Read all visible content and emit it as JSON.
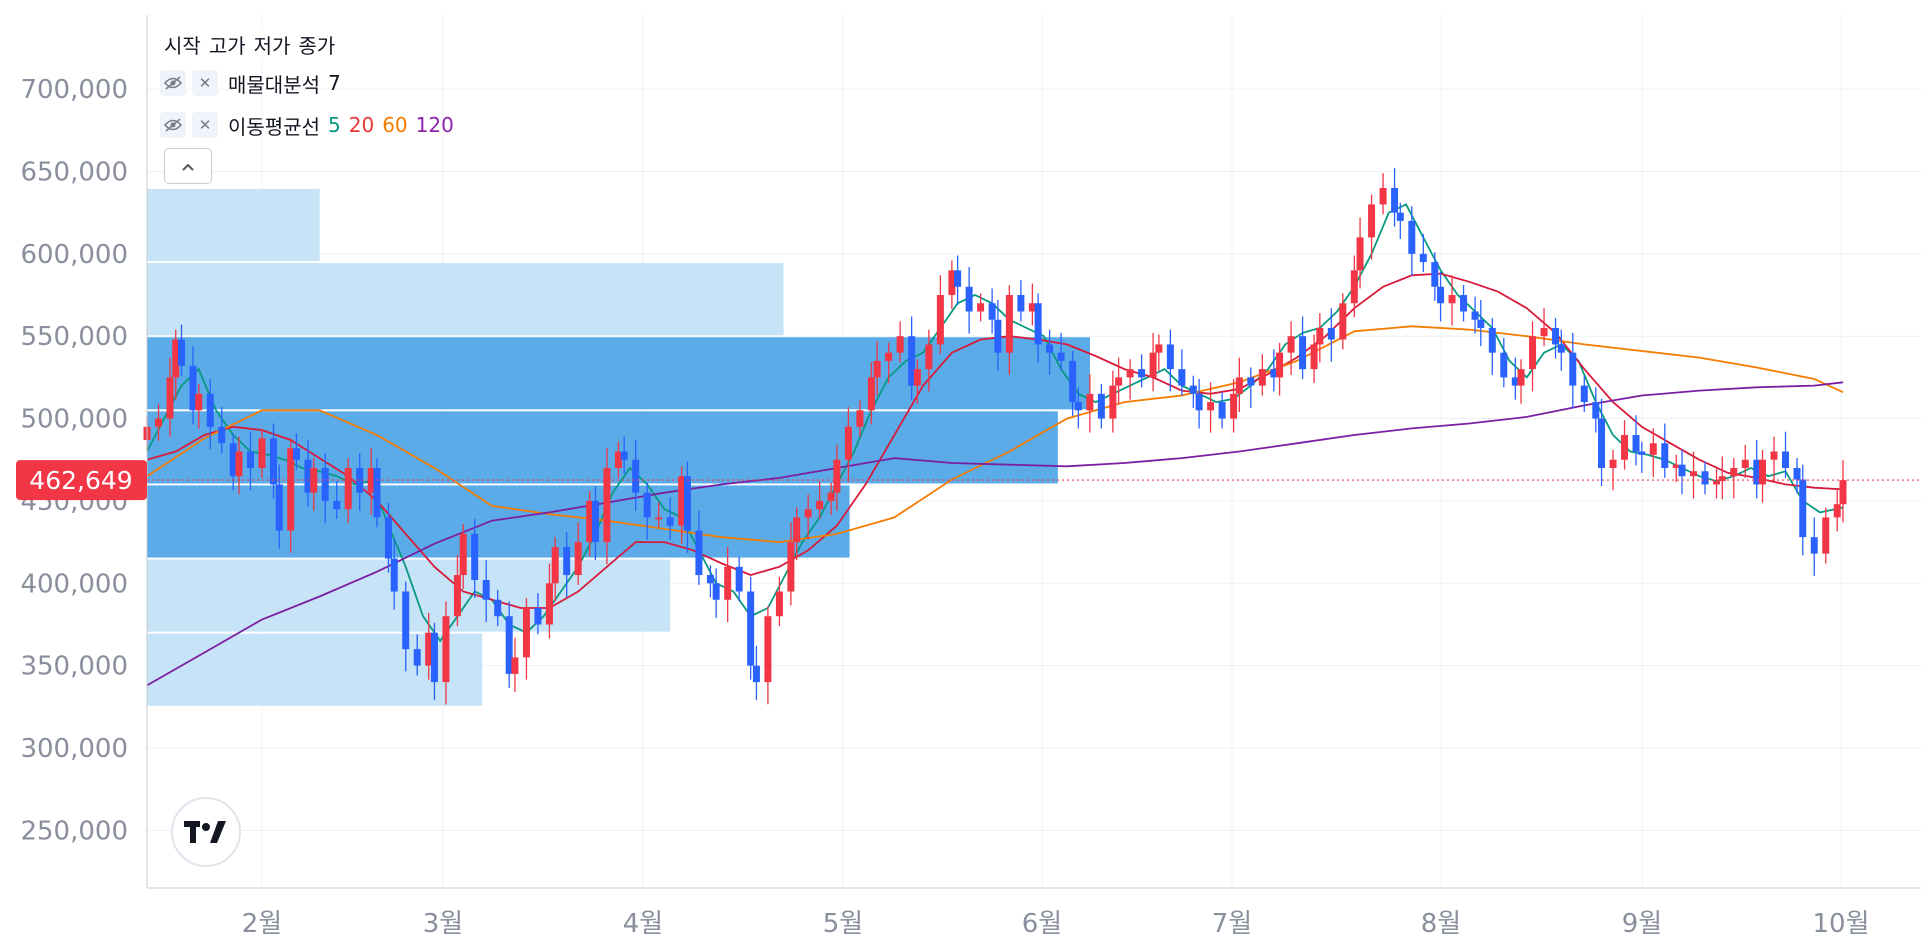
{
  "legend": {
    "ohlc_labels": [
      "시작",
      "고가",
      "저가",
      "종가"
    ],
    "indicators": [
      {
        "name": "매물대분석",
        "params": [
          {
            "text": "7",
            "color": "#131722"
          }
        ]
      },
      {
        "name": "이동평균선",
        "params": [
          {
            "text": "5",
            "color": "#089981"
          },
          {
            "text": "20",
            "color": "#e53935"
          },
          {
            "text": "60",
            "color": "#f57c00"
          },
          {
            "text": "120",
            "color": "#8e24aa"
          }
        ]
      }
    ]
  },
  "current_price_label": "462,649",
  "colors": {
    "up": "#f23645",
    "down": "#2962ff",
    "ma5": "#089981",
    "ma20": "#d81b3a",
    "ma60": "#f57c00",
    "ma120": "#7b1fa2",
    "vp_dark": "#5aabe8",
    "vp_light": "#c6e3f7",
    "grid": "#eef0f4",
    "axis_text": "#8a8f9e",
    "price_label_bg": "#f23645"
  },
  "chart_data": {
    "type": "candlestick",
    "title": "",
    "y_axis": {
      "ylim": [
        215000,
        745000
      ],
      "tick_labels": [
        "250,000",
        "300,000",
        "350,000",
        "400,000",
        "450,000",
        "500,000",
        "550,000",
        "600,000",
        "650,000",
        "700,000"
      ],
      "ticks": [
        250000,
        300000,
        350000,
        400000,
        450000,
        500000,
        550000,
        600000,
        650000,
        700000
      ]
    },
    "x_axis": {
      "range": [
        "01-15",
        "10-11"
      ],
      "tick_labels": [
        "2월",
        "3월",
        "4월",
        "5월",
        "6월",
        "7월",
        "8월",
        "9월",
        "10월"
      ],
      "tick_dates": [
        "02-01",
        "03-01",
        "04-01",
        "05-01",
        "06-01",
        "07-01",
        "08-01",
        "09-01",
        "10-01"
      ]
    },
    "current_price": 462649,
    "candles_close": [
      [
        0,
        495000
      ],
      [
        2,
        500000
      ],
      [
        4,
        525000
      ],
      [
        5,
        548000
      ],
      [
        6,
        532000
      ],
      [
        8,
        505000
      ],
      [
        9,
        515000
      ],
      [
        11,
        495000
      ],
      [
        13,
        485000
      ],
      [
        15,
        465000
      ],
      [
        16,
        480000
      ],
      [
        18,
        470000
      ],
      [
        20,
        488000
      ],
      [
        22,
        460000
      ],
      [
        23,
        432000
      ],
      [
        25,
        482000
      ],
      [
        26,
        475000
      ],
      [
        28,
        455000
      ],
      [
        29,
        470000
      ],
      [
        31,
        450000
      ],
      [
        33,
        445000
      ],
      [
        35,
        470000
      ],
      [
        37,
        455000
      ],
      [
        39,
        470000
      ],
      [
        40,
        440000
      ],
      [
        42,
        415000
      ],
      [
        43,
        395000
      ],
      [
        45,
        360000
      ],
      [
        47,
        350000
      ],
      [
        49,
        370000
      ],
      [
        50,
        340000
      ],
      [
        52,
        380000
      ],
      [
        54,
        405000
      ],
      [
        55,
        430000
      ],
      [
        57,
        402000
      ],
      [
        59,
        390000
      ],
      [
        61,
        380000
      ],
      [
        63,
        345000
      ],
      [
        64,
        355000
      ],
      [
        66,
        385000
      ],
      [
        68,
        375000
      ],
      [
        70,
        400000
      ],
      [
        71,
        422000
      ],
      [
        73,
        405000
      ],
      [
        75,
        425000
      ],
      [
        77,
        450000
      ],
      [
        78,
        425000
      ],
      [
        80,
        470000
      ],
      [
        82,
        480000
      ],
      [
        83,
        475000
      ],
      [
        85,
        455000
      ],
      [
        87,
        440000
      ],
      [
        89,
        440000
      ],
      [
        91,
        435000
      ],
      [
        93,
        465000
      ],
      [
        94,
        432000
      ],
      [
        96,
        405000
      ],
      [
        98,
        400000
      ],
      [
        99,
        390000
      ],
      [
        101,
        410000
      ],
      [
        103,
        395000
      ],
      [
        105,
        350000
      ],
      [
        106,
        340000
      ],
      [
        108,
        380000
      ],
      [
        110,
        395000
      ],
      [
        112,
        425000
      ],
      [
        113,
        440000
      ],
      [
        115,
        445000
      ],
      [
        117,
        450000
      ],
      [
        119,
        455000
      ],
      [
        120,
        475000
      ],
      [
        122,
        495000
      ],
      [
        124,
        505000
      ],
      [
        126,
        525000
      ],
      [
        127,
        535000
      ],
      [
        129,
        540000
      ],
      [
        131,
        550000
      ],
      [
        133,
        520000
      ],
      [
        134,
        530000
      ],
      [
        136,
        545000
      ],
      [
        138,
        575000
      ],
      [
        140,
        590000
      ],
      [
        141,
        580000
      ],
      [
        143,
        565000
      ],
      [
        145,
        570000
      ],
      [
        147,
        560000
      ],
      [
        148,
        540000
      ],
      [
        150,
        575000
      ],
      [
        152,
        565000
      ],
      [
        154,
        570000
      ],
      [
        155,
        545000
      ],
      [
        157,
        540000
      ],
      [
        159,
        535000
      ],
      [
        161,
        510000
      ],
      [
        162,
        505000
      ],
      [
        164,
        515000
      ],
      [
        166,
        500000
      ],
      [
        168,
        520000
      ],
      [
        169,
        525000
      ],
      [
        171,
        530000
      ],
      [
        173,
        525000
      ],
      [
        175,
        540000
      ],
      [
        176,
        545000
      ],
      [
        178,
        530000
      ],
      [
        180,
        520000
      ],
      [
        182,
        515000
      ],
      [
        183,
        505000
      ],
      [
        185,
        510000
      ],
      [
        187,
        500000
      ],
      [
        189,
        515000
      ],
      [
        190,
        525000
      ],
      [
        192,
        520000
      ],
      [
        194,
        530000
      ],
      [
        196,
        525000
      ],
      [
        197,
        540000
      ],
      [
        199,
        550000
      ],
      [
        201,
        530000
      ],
      [
        203,
        545000
      ],
      [
        204,
        555000
      ],
      [
        206,
        548000
      ],
      [
        208,
        570000
      ],
      [
        210,
        590000
      ],
      [
        211,
        610000
      ],
      [
        213,
        630000
      ],
      [
        215,
        640000
      ],
      [
        217,
        625000
      ],
      [
        218,
        620000
      ],
      [
        220,
        600000
      ],
      [
        222,
        595000
      ],
      [
        224,
        580000
      ],
      [
        225,
        570000
      ],
      [
        227,
        575000
      ],
      [
        229,
        565000
      ],
      [
        231,
        560000
      ],
      [
        232,
        555000
      ],
      [
        234,
        540000
      ],
      [
        236,
        525000
      ],
      [
        238,
        520000
      ],
      [
        239,
        530000
      ],
      [
        241,
        550000
      ],
      [
        243,
        555000
      ],
      [
        245,
        545000
      ],
      [
        246,
        540000
      ],
      [
        248,
        520000
      ],
      [
        250,
        510000
      ],
      [
        252,
        500000
      ],
      [
        253,
        470000
      ],
      [
        255,
        475000
      ],
      [
        257,
        490000
      ],
      [
        259,
        480000
      ],
      [
        260,
        478000
      ],
      [
        262,
        485000
      ],
      [
        264,
        470000
      ],
      [
        266,
        472000
      ],
      [
        267,
        465000
      ],
      [
        269,
        468000
      ],
      [
        271,
        460000
      ],
      [
        273,
        462000
      ],
      [
        274,
        465000
      ],
      [
        276,
        470000
      ],
      [
        278,
        475000
      ],
      [
        280,
        460000
      ],
      [
        281,
        475000
      ],
      [
        283,
        480000
      ],
      [
        285,
        470000
      ],
      [
        287,
        463000
      ],
      [
        288,
        428000
      ],
      [
        290,
        418000
      ],
      [
        292,
        440000
      ],
      [
        294,
        448000
      ],
      [
        295,
        462649
      ]
    ],
    "series": [
      {
        "name": "5",
        "type": "line",
        "x": [
          0,
          3,
          6,
          9,
          12,
          15,
          18,
          21,
          24,
          27,
          30,
          33,
          36,
          39,
          42,
          45,
          48,
          51,
          54,
          57,
          60,
          63,
          66,
          69,
          72,
          75,
          78,
          81,
          84,
          87,
          90,
          93,
          96,
          99,
          102,
          105,
          108,
          111,
          114,
          117,
          120,
          123,
          126,
          129,
          132,
          135,
          138,
          141,
          144,
          147,
          150,
          153,
          156,
          159,
          162,
          165,
          168,
          171,
          174,
          177,
          180,
          183,
          186,
          189,
          192,
          195,
          198,
          201,
          204,
          207,
          210,
          213,
          216,
          219,
          222,
          225,
          228,
          231,
          234,
          237,
          240,
          243,
          246,
          249,
          252,
          255,
          258,
          261,
          264,
          267,
          270,
          273,
          276,
          279,
          282,
          285,
          288,
          291,
          295
        ],
        "values": [
          480000,
          500000,
          520000,
          530000,
          505000,
          490000,
          480000,
          478000,
          475000,
          470000,
          468000,
          465000,
          460000,
          462000,
          435000,
          410000,
          380000,
          365000,
          380000,
          395000,
          390000,
          375000,
          370000,
          380000,
          395000,
          410000,
          430000,
          455000,
          470000,
          460000,
          445000,
          440000,
          420000,
          400000,
          395000,
          380000,
          385000,
          405000,
          425000,
          440000,
          460000,
          480000,
          505000,
          525000,
          535000,
          540000,
          555000,
          570000,
          575000,
          570000,
          560000,
          555000,
          550000,
          530000,
          515000,
          510000,
          515000,
          520000,
          525000,
          530000,
          520000,
          515000,
          510000,
          512000,
          520000,
          530000,
          545000,
          552000,
          555000,
          565000,
          580000,
          600000,
          625000,
          630000,
          610000,
          590000,
          575000,
          565000,
          555000,
          535000,
          525000,
          540000,
          545000,
          535000,
          510000,
          490000,
          480000,
          478000,
          475000,
          470000,
          465000,
          462000,
          465000,
          470000,
          465000,
          468000,
          450000,
          443000,
          446000
        ]
      },
      {
        "name": "20",
        "type": "line",
        "x": [
          0,
          5,
          10,
          15,
          20,
          25,
          30,
          35,
          40,
          45,
          50,
          55,
          60,
          65,
          70,
          75,
          80,
          85,
          90,
          95,
          100,
          105,
          110,
          115,
          120,
          125,
          130,
          135,
          140,
          145,
          150,
          155,
          160,
          165,
          170,
          175,
          180,
          185,
          190,
          195,
          200,
          205,
          210,
          215,
          220,
          225,
          230,
          235,
          240,
          245,
          250,
          255,
          260,
          265,
          270,
          275,
          280,
          285,
          290,
          295
        ],
        "values": [
          475000,
          480000,
          490000,
          495000,
          493000,
          487000,
          476000,
          465000,
          450000,
          430000,
          410000,
          395000,
          390000,
          385000,
          385000,
          395000,
          410000,
          425000,
          425000,
          420000,
          412000,
          405000,
          410000,
          420000,
          435000,
          460000,
          490000,
          520000,
          540000,
          548000,
          550000,
          548000,
          545000,
          538000,
          530000,
          525000,
          517000,
          515000,
          518000,
          527000,
          537000,
          550000,
          567000,
          580000,
          587000,
          588000,
          583000,
          577000,
          567000,
          552000,
          530000,
          510000,
          495000,
          485000,
          475000,
          467000,
          464000,
          460000,
          458000,
          457000
        ]
      },
      {
        "name": "60",
        "type": "line",
        "x": [
          0,
          10,
          20,
          30,
          40,
          50,
          60,
          70,
          80,
          90,
          100,
          110,
          120,
          130,
          140,
          150,
          160,
          170,
          180,
          190,
          200,
          210,
          220,
          230,
          240,
          250,
          260,
          270,
          280,
          290,
          295
        ],
        "values": [
          465000,
          488000,
          505000,
          505000,
          490000,
          470000,
          447000,
          442000,
          438000,
          433000,
          428000,
          425000,
          430000,
          440000,
          463000,
          480000,
          500000,
          510000,
          514000,
          522000,
          535000,
          553000,
          556000,
          554000,
          550000,
          545000,
          541000,
          537000,
          531000,
          524000,
          516000
        ]
      },
      {
        "name": "120",
        "type": "line",
        "x": [
          0,
          10,
          20,
          30,
          40,
          50,
          60,
          70,
          80,
          90,
          100,
          110,
          120,
          130,
          140,
          150,
          160,
          170,
          180,
          190,
          200,
          210,
          220,
          230,
          240,
          250,
          260,
          270,
          280,
          290,
          295
        ],
        "values": [
          338000,
          358000,
          378000,
          392000,
          407000,
          424000,
          438000,
          443000,
          449000,
          455000,
          460000,
          464000,
          470000,
          476000,
          473000,
          472000,
          471000,
          473000,
          476000,
          480000,
          485000,
          490000,
          494000,
          497000,
          501000,
          508000,
          514000,
          517000,
          519000,
          520000,
          522000
        ]
      }
    ],
    "volume_profile": {
      "rows": [
        {
          "low": 325000,
          "high": 370000,
          "volume_pct": 19.8,
          "highlight": false
        },
        {
          "low": 370000,
          "high": 415000,
          "volume_pct": 30.9,
          "highlight": false
        },
        {
          "low": 415000,
          "high": 460000,
          "volume_pct": 41.5,
          "highlight": true
        },
        {
          "low": 460000,
          "high": 505000,
          "volume_pct": 53.8,
          "highlight": true
        },
        {
          "low": 505000,
          "high": 550000,
          "volume_pct": 55.7,
          "highlight": true
        },
        {
          "low": 550000,
          "high": 595000,
          "volume_pct": 37.6,
          "highlight": false
        },
        {
          "low": 595000,
          "high": 640000,
          "volume_pct": 10.2,
          "highlight": false
        }
      ]
    },
    "grid": true,
    "legend_position": "top-left"
  }
}
